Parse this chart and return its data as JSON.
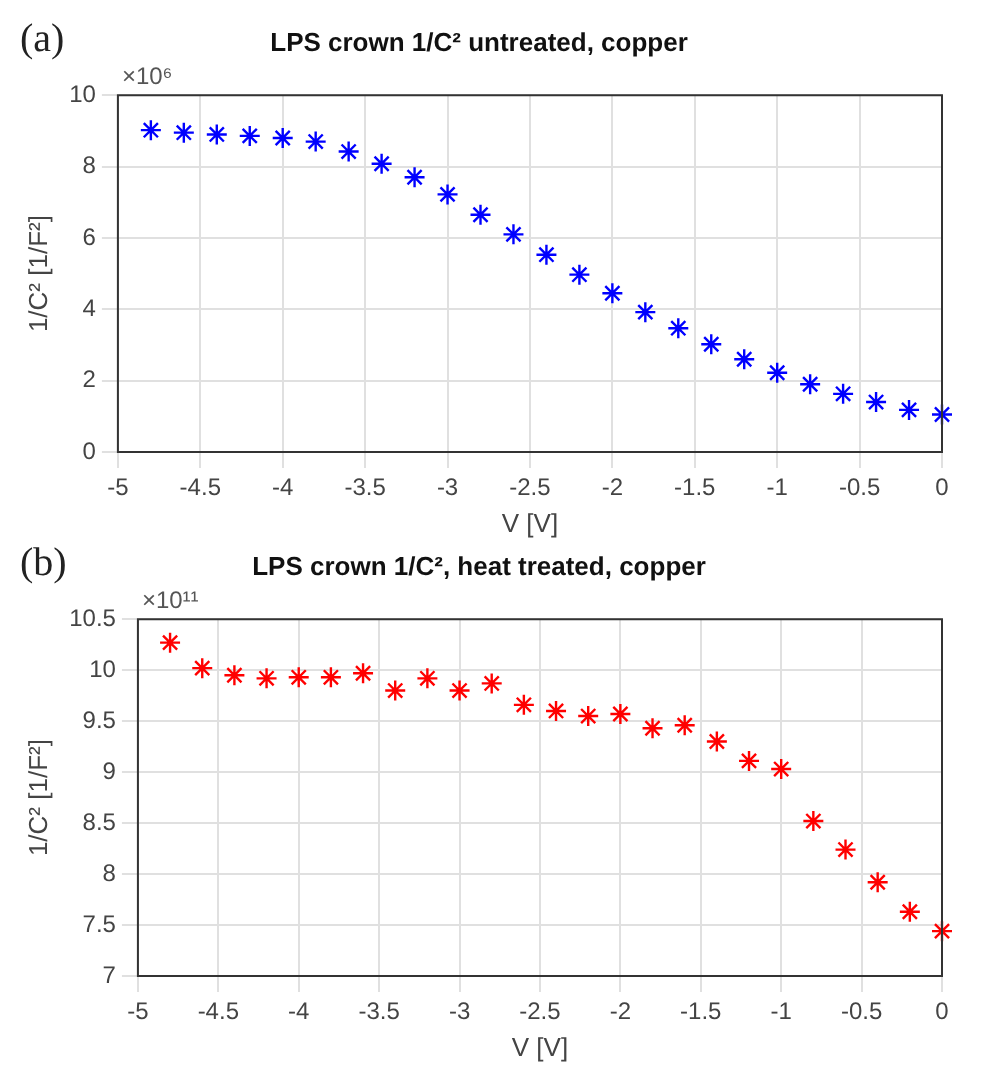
{
  "chart_data": [
    {
      "type": "scatter",
      "title": "LPS crown 1/C² untreated, copper",
      "xlabel": "V [V]",
      "ylabel": "1/C² [1/F²]",
      "annotations": [
        "(a)",
        "×10⁶"
      ],
      "x": [
        -4.8,
        -4.6,
        -4.4,
        -4.2,
        -4.0,
        -3.8,
        -3.6,
        -3.4,
        -3.2,
        -3.0,
        -2.8,
        -2.6,
        -2.4,
        -2.2,
        -2.0,
        -1.8,
        -1.6,
        -1.4,
        -1.2,
        -1.0,
        -0.8,
        -0.6,
        -0.4,
        -0.2,
        0
      ],
      "series": [
        {
          "color": "#0000ff",
          "values": [
            9.02,
            8.95,
            8.9,
            8.86,
            8.8,
            8.7,
            8.42,
            8.08,
            7.7,
            7.22,
            6.65,
            6.1,
            5.53,
            4.97,
            4.45,
            3.92,
            3.47,
            3.02,
            2.6,
            2.22,
            1.9,
            1.63,
            1.4,
            1.18,
            1.05
          ]
        }
      ],
      "xlim": [
        -5,
        0
      ],
      "xticks": [
        -5,
        -4.5,
        -4,
        -3.5,
        -3,
        -2.5,
        -2,
        -1.5,
        -1,
        -0.5,
        0
      ],
      "ylim": [
        0,
        10
      ],
      "yticks": [
        0,
        2,
        4,
        6,
        8,
        10
      ],
      "grid": true,
      "legend": false,
      "marker": "cross"
    },
    {
      "type": "scatter",
      "title": "LPS crown 1/C², heat treated, copper",
      "xlabel": "V [V]",
      "ylabel": "1/C² [1/F²]",
      "annotations": [
        "(b)",
        "×10¹¹"
      ],
      "x": [
        -4.8,
        -4.6,
        -4.4,
        -4.2,
        -4.0,
        -3.8,
        -3.6,
        -3.4,
        -3.2,
        -3.0,
        -2.8,
        -2.6,
        -2.4,
        -2.2,
        -2.0,
        -1.8,
        -1.6,
        -1.4,
        -1.2,
        -1.0,
        -0.8,
        -0.6,
        -0.4,
        -0.2,
        0
      ],
      "series": [
        {
          "color": "#ff0000",
          "values": [
            10.27,
            10.02,
            9.95,
            9.92,
            9.93,
            9.93,
            9.97,
            9.8,
            9.92,
            9.8,
            9.87,
            9.66,
            9.6,
            9.55,
            9.57,
            9.43,
            9.46,
            9.3,
            9.11,
            9.03,
            8.52,
            8.24,
            7.92,
            7.63,
            7.44
          ]
        }
      ],
      "xlim": [
        -5,
        0
      ],
      "xticks": [
        -5,
        -4.5,
        -4,
        -3.5,
        -3,
        -2.5,
        -2,
        -1.5,
        -1,
        -0.5,
        0
      ],
      "ylim": [
        7,
        10.5
      ],
      "yticks": [
        7,
        7.5,
        8,
        8.5,
        9,
        9.5,
        10,
        10.5
      ],
      "grid": true,
      "legend": false,
      "marker": "cross"
    }
  ]
}
